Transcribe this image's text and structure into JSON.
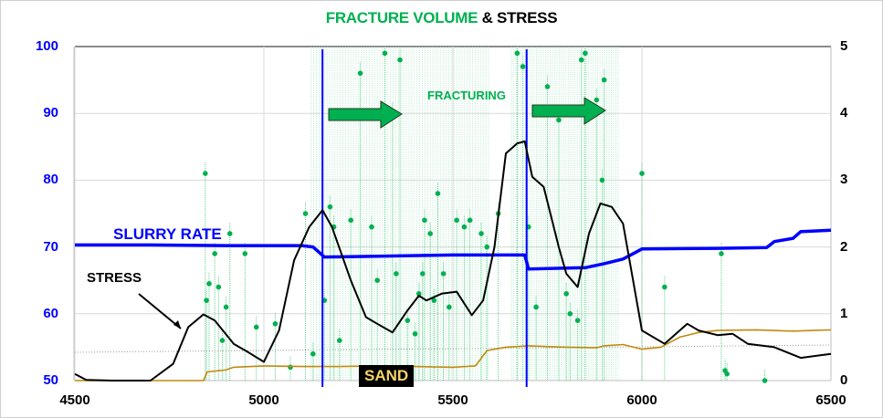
{
  "title": {
    "part1": "FRACTURE VOLUME",
    "part2": " & STRESS"
  },
  "annotations": {
    "fracturing": "FRACTURING",
    "slurry_rate": "SLURRY RATE",
    "stress": "STRESS",
    "sand": "SAND"
  },
  "axes": {
    "left_ticks": [
      "100",
      "90",
      "80",
      "70",
      "60",
      "50"
    ],
    "right_ticks": [
      "5",
      "4",
      "3",
      "2",
      "1",
      "0"
    ],
    "x_ticks": [
      "4500",
      "5000",
      "5500",
      "6000",
      "6500"
    ]
  },
  "colors": {
    "slurry": "#0000ff",
    "stress": "#000000",
    "sand": "#c08a10",
    "fracture": "#00b050",
    "left_axis": "#0000ff",
    "marker_lines": "#0000ff"
  },
  "chart_data": {
    "type": "line",
    "title": "FRACTURE VOLUME & STRESS",
    "xlabel": "",
    "xlim": [
      4500,
      6500
    ],
    "x_ticks": [
      4500,
      5000,
      5500,
      6000,
      6500
    ],
    "ylim_left": [
      50,
      100
    ],
    "ylim_right": [
      0,
      5
    ],
    "grid": true,
    "vertical_markers": [
      5155,
      5695
    ],
    "annotations": [
      "FRACTURING",
      "SLURRY RATE",
      "STRESS",
      "SAND"
    ],
    "series": [
      {
        "name": "SLURRY RATE",
        "axis": "left",
        "color": "#0000ff",
        "x": [
          4500,
          4700,
          4900,
          5100,
          5130,
          5160,
          5300,
          5500,
          5690,
          5700,
          5850,
          5900,
          5950,
          6000,
          6200,
          6330,
          6350,
          6400,
          6420,
          6500
        ],
        "y": [
          70.3,
          70.3,
          70.2,
          70.2,
          70.0,
          68.5,
          68.6,
          68.8,
          68.8,
          66.7,
          66.9,
          67.5,
          68.2,
          69.7,
          69.8,
          69.9,
          70.8,
          71.3,
          72.3,
          72.5
        ]
      },
      {
        "name": "STRESS",
        "axis": "left",
        "color": "#000000",
        "x": [
          4500,
          4530,
          4600,
          4700,
          4760,
          4800,
          4840,
          4870,
          4920,
          4960,
          5000,
          5040,
          5080,
          5120,
          5155,
          5180,
          5230,
          5270,
          5300,
          5340,
          5380,
          5410,
          5430,
          5470,
          5510,
          5550,
          5580,
          5610,
          5640,
          5670,
          5690,
          5710,
          5740,
          5780,
          5800,
          5830,
          5860,
          5890,
          5920,
          5950,
          6000,
          6060,
          6120,
          6150,
          6200,
          6240,
          6280,
          6350,
          6420,
          6500
        ],
        "y": [
          51.0,
          50.1,
          50.0,
          50.0,
          52.5,
          58.0,
          59.9,
          59.0,
          55.5,
          54.2,
          52.8,
          57.5,
          68.0,
          73.0,
          75.5,
          73.0,
          65.0,
          59.5,
          58.5,
          57.2,
          60.5,
          62.7,
          62.0,
          63.0,
          63.3,
          59.8,
          62.0,
          70.0,
          84.0,
          85.5,
          85.8,
          80.5,
          79.0,
          70.0,
          66.0,
          64.0,
          72.0,
          76.5,
          76.0,
          73.5,
          57.5,
          55.5,
          58.5,
          57.5,
          56.8,
          57.0,
          55.5,
          55.0,
          53.4,
          54.0
        ]
      },
      {
        "name": "SAND",
        "axis": "right",
        "color": "#c08a10",
        "x": [
          4500,
          4840,
          4850,
          4900,
          4920,
          5000,
          5100,
          5200,
          5300,
          5400,
          5500,
          5560,
          5590,
          5640,
          5700,
          5800,
          5880,
          5900,
          5950,
          6000,
          6050,
          6100,
          6150,
          6200,
          6300,
          6400,
          6500
        ],
        "y": [
          0.0,
          0.0,
          0.13,
          0.16,
          0.2,
          0.22,
          0.21,
          0.21,
          0.22,
          0.21,
          0.2,
          0.22,
          0.45,
          0.5,
          0.52,
          0.5,
          0.49,
          0.52,
          0.54,
          0.47,
          0.5,
          0.65,
          0.72,
          0.75,
          0.76,
          0.74,
          0.76
        ]
      },
      {
        "name": "FRACTURE VOLUME (stems)",
        "axis": "right",
        "color": "#00b050",
        "type": "stem",
        "x": [
          4845,
          4848,
          4855,
          4870,
          4880,
          4890,
          4900,
          4910,
          4950,
          4980,
          5030,
          5070,
          5110,
          5130,
          5160,
          5175,
          5185,
          5200,
          5230,
          5255,
          5285,
          5300,
          5320,
          5340,
          5350,
          5360,
          5380,
          5400,
          5410,
          5420,
          5425,
          5440,
          5450,
          5460,
          5475,
          5490,
          5510,
          5530,
          5545,
          5575,
          5590,
          5620,
          5670,
          5685,
          5700,
          5720,
          5750,
          5780,
          5800,
          5810,
          5830,
          5840,
          5850,
          5880,
          5895,
          5900,
          6000,
          6060,
          6210,
          6220,
          6225,
          6325
        ],
        "y": [
          3.1,
          1.2,
          1.45,
          1.9,
          1.4,
          0.6,
          1.1,
          2.2,
          1.9,
          0.8,
          0.85,
          0.2,
          2.5,
          0.4,
          1.2,
          2.6,
          2.3,
          0.6,
          2.4,
          4.6,
          2.3,
          1.5,
          4.9,
          4.0,
          1.6,
          4.8,
          0.9,
          0.7,
          1.3,
          1.6,
          2.4,
          2.2,
          1.2,
          2.8,
          1.6,
          1.1,
          2.4,
          2.3,
          2.4,
          2.2,
          2.0,
          2.5,
          4.9,
          4.7,
          2.3,
          1.1,
          4.4,
          3.9,
          1.3,
          1.0,
          0.9,
          4.8,
          4.9,
          4.2,
          3.0,
          4.5,
          3.1,
          1.4,
          1.9,
          0.15,
          0.1,
          0.0
        ]
      }
    ]
  }
}
